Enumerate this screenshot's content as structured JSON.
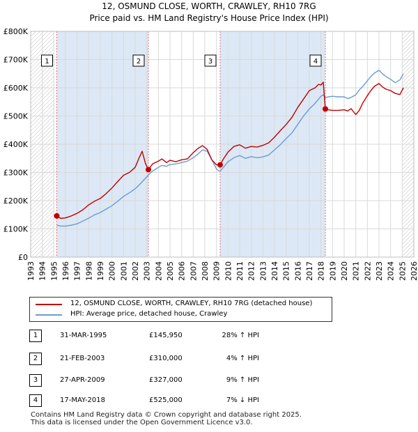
{
  "header": {
    "title_line1": "12, OSMUND CLOSE, WORTH, CRAWLEY, RH10 7RG",
    "title_line2": "Price paid vs. HM Land Registry's House Price Index (HPI)"
  },
  "colors": {
    "price": "#c00000",
    "hpi": "#6c9bd2",
    "shade": "#dce8f5",
    "hatch": "#c8c8c8",
    "sale_line": "#e07070"
  },
  "chart_data": {
    "type": "line",
    "ylabel": "",
    "xlabel": "",
    "xlim": [
      1993,
      2026
    ],
    "ylim": [
      0,
      800000
    ],
    "yticks": [
      {
        "value": 0,
        "label": "£0"
      },
      {
        "value": 100000,
        "label": "£100K"
      },
      {
        "value": 200000,
        "label": "£200K"
      },
      {
        "value": 300000,
        "label": "£300K"
      },
      {
        "value": 400000,
        "label": "£400K"
      },
      {
        "value": 500000,
        "label": "£500K"
      },
      {
        "value": 600000,
        "label": "£600K"
      },
      {
        "value": 700000,
        "label": "£700K"
      },
      {
        "value": 800000,
        "label": "£800K"
      }
    ],
    "xticks": [
      "1993",
      "1994",
      "1995",
      "1996",
      "1997",
      "1998",
      "1999",
      "2000",
      "2001",
      "2002",
      "2003",
      "2004",
      "2005",
      "2006",
      "2007",
      "2008",
      "2009",
      "2010",
      "2011",
      "2012",
      "2013",
      "2014",
      "2015",
      "2016",
      "2017",
      "2018",
      "2019",
      "2020",
      "2021",
      "2022",
      "2023",
      "2024",
      "2025",
      "2026"
    ],
    "hatch_before": 1995.0,
    "hatch_after": 2025.0,
    "series": [
      {
        "name": "12, OSMUND CLOSE, WORTH, CRAWLEY, RH10 7RG (detached house)",
        "color": "#c00000",
        "x": [
          1995.25,
          1995.6,
          1996.0,
          1996.5,
          1997.0,
          1997.5,
          1998.0,
          1998.5,
          1999.0,
          1999.5,
          2000.0,
          2000.5,
          2001.0,
          2001.5,
          2002.0,
          2002.3,
          2002.6,
          2002.9,
          2003.14,
          2003.5,
          2004.0,
          2004.3,
          2004.7,
          2005.0,
          2005.5,
          2006.0,
          2006.5,
          2007.0,
          2007.4,
          2007.8,
          2008.2,
          2008.6,
          2009.0,
          2009.32,
          2009.6,
          2010.0,
          2010.5,
          2011.0,
          2011.5,
          2012.0,
          2012.5,
          2013.0,
          2013.5,
          2014.0,
          2014.5,
          2015.0,
          2015.5,
          2016.0,
          2016.5,
          2017.0,
          2017.5,
          2017.8,
          2018.0,
          2018.2,
          2018.38,
          2018.6,
          2019.0,
          2019.5,
          2020.0,
          2020.3,
          2020.6,
          2021.0,
          2021.3,
          2021.6,
          2022.0,
          2022.3,
          2022.6,
          2023.0,
          2023.3,
          2023.6,
          2024.0,
          2024.4,
          2024.8,
          2025.1
        ],
        "values": [
          145950,
          137000,
          139000,
          146000,
          155000,
          168000,
          185000,
          198000,
          208000,
          225000,
          245000,
          268000,
          290000,
          300000,
          318000,
          348000,
          375000,
          330000,
          310000,
          330000,
          340000,
          348000,
          335000,
          343000,
          338000,
          345000,
          348000,
          370000,
          385000,
          395000,
          382000,
          345000,
          327000,
          327000,
          348000,
          372000,
          392000,
          398000,
          386000,
          392000,
          390000,
          396000,
          405000,
          425000,
          448000,
          470000,
          495000,
          530000,
          560000,
          590000,
          600000,
          612000,
          610000,
          620000,
          525000,
          522000,
          520000,
          520000,
          522000,
          518000,
          526000,
          505000,
          520000,
          546000,
          572000,
          590000,
          605000,
          615000,
          603000,
          595000,
          590000,
          580000,
          576000,
          600000
        ],
        "sales": [
          {
            "id": "1",
            "x": 1995.25,
            "value": 145950
          },
          {
            "id": "2",
            "x": 2003.14,
            "value": 310000
          },
          {
            "id": "3",
            "x": 2009.32,
            "value": 327000
          },
          {
            "id": "4",
            "x": 2018.38,
            "value": 525000
          }
        ]
      },
      {
        "name": "HPI: Average price, detached house, Crawley",
        "color": "#6c9bd2",
        "x": [
          1995.25,
          1995.6,
          1996.0,
          1996.5,
          1997.0,
          1997.5,
          1998.0,
          1998.5,
          1999.0,
          1999.5,
          2000.0,
          2000.5,
          2001.0,
          2001.5,
          2002.0,
          2002.5,
          2003.0,
          2003.5,
          2004.0,
          2004.3,
          2004.7,
          2005.0,
          2005.5,
          2006.0,
          2006.5,
          2007.0,
          2007.4,
          2007.8,
          2008.2,
          2008.6,
          2009.0,
          2009.3,
          2009.6,
          2010.0,
          2010.5,
          2011.0,
          2011.5,
          2012.0,
          2012.5,
          2013.0,
          2013.5,
          2014.0,
          2014.5,
          2015.0,
          2015.5,
          2016.0,
          2016.5,
          2017.0,
          2017.5,
          2017.8,
          2018.0,
          2018.2,
          2018.38,
          2018.6,
          2019.0,
          2019.5,
          2020.0,
          2020.3,
          2020.6,
          2021.0,
          2021.3,
          2021.6,
          2022.0,
          2022.3,
          2022.6,
          2023.0,
          2023.3,
          2023.6,
          2024.0,
          2024.4,
          2024.8,
          2025.1
        ],
        "values": [
          113000,
          110000,
          110000,
          113000,
          118000,
          128000,
          138000,
          150000,
          158000,
          170000,
          182000,
          198000,
          215000,
          228000,
          242000,
          262000,
          285000,
          305000,
          318000,
          325000,
          322000,
          328000,
          330000,
          335000,
          340000,
          352000,
          365000,
          380000,
          375000,
          345000,
          312000,
          304000,
          318000,
          338000,
          352000,
          360000,
          350000,
          356000,
          352000,
          355000,
          362000,
          380000,
          398000,
          420000,
          440000,
          470000,
          500000,
          525000,
          545000,
          560000,
          570000,
          575000,
          565000,
          568000,
          570000,
          568000,
          568000,
          562000,
          566000,
          575000,
          592000,
          605000,
          625000,
          640000,
          652000,
          662000,
          650000,
          640000,
          630000,
          618000,
          628000,
          650000
        ]
      }
    ]
  },
  "legend": {
    "price_label": "12, OSMUND CLOSE, WORTH, CRAWLEY, RH10 7RG (detached house)",
    "hpi_label": "HPI: Average price, detached house, Crawley"
  },
  "sales_table": [
    {
      "id": "1",
      "date": "31-MAR-1995",
      "price": "£145,950",
      "hpi": "28% ↑ HPI"
    },
    {
      "id": "2",
      "date": "21-FEB-2003",
      "price": "£310,000",
      "hpi": "4% ↑ HPI"
    },
    {
      "id": "3",
      "date": "27-APR-2009",
      "price": "£327,000",
      "hpi": "9% ↑ HPI"
    },
    {
      "id": "4",
      "date": "17-MAY-2018",
      "price": "£525,000",
      "hpi": "7% ↓ HPI"
    }
  ],
  "footer": {
    "line1": "Contains HM Land Registry data © Crown copyright and database right 2025.",
    "line2": "This data is licensed under the Open Government Licence v3.0."
  }
}
